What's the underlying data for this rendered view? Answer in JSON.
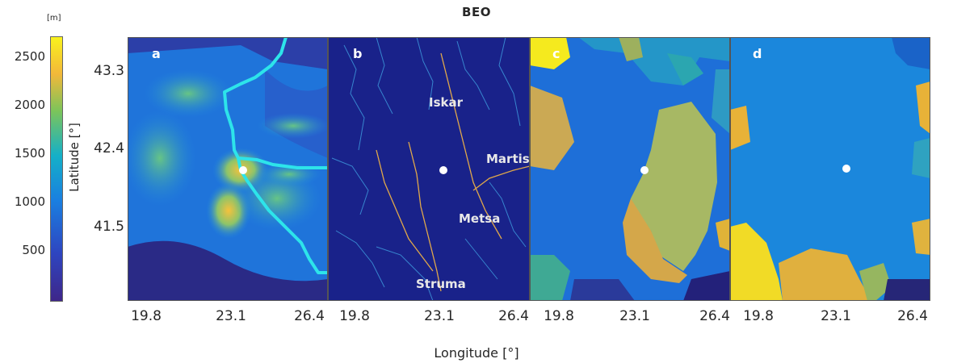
{
  "title": "BEO",
  "colorbar": {
    "unit": "[m]",
    "ticks": [
      "2500",
      "2000",
      "1500",
      "1000",
      "500"
    ]
  },
  "y_axis": {
    "label": "Latitude [°]",
    "ticks": [
      "43.3",
      "42.4",
      "41.5"
    ]
  },
  "x_axis": {
    "label": "Longitude [°]",
    "ticks": [
      "19.8",
      "23.1",
      "26.4"
    ]
  },
  "panels": [
    {
      "label": "a"
    },
    {
      "label": "b",
      "rivers": [
        "Iskar",
        "Martisa",
        "Metsa",
        "Struma"
      ]
    },
    {
      "label": "c"
    },
    {
      "label": "d"
    }
  ],
  "colors": {
    "river_overlay": "#2de4ea",
    "marker": "#ffffff",
    "low": "#2a1e74",
    "mid": "#1e88e0",
    "high": "#f2e626"
  }
}
